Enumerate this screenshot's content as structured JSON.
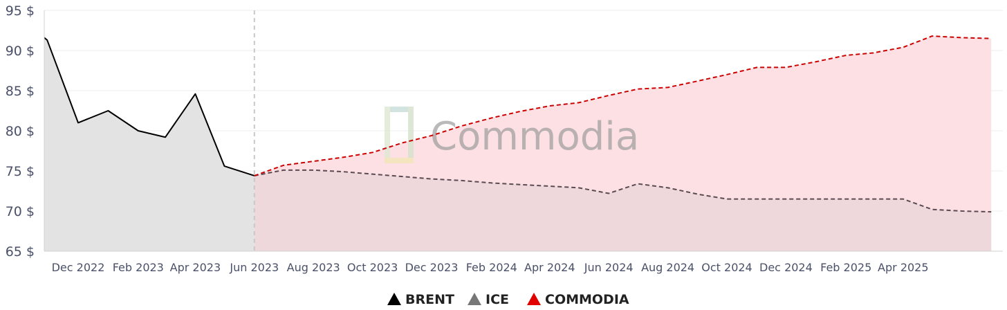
{
  "watermark": {
    "text": "Commodia"
  },
  "legend": [
    {
      "name": "BRENT",
      "color": "#000000"
    },
    {
      "name": "ICE",
      "color": "#777777"
    },
    {
      "name": "COMMODIA",
      "color": "#e00000"
    }
  ],
  "chart_data": {
    "type": "line",
    "ylim": [
      65,
      95
    ],
    "yticks": [
      65,
      70,
      75,
      80,
      85,
      90,
      95
    ],
    "ytick_suffix": " $",
    "xlim": [
      "2022-10-27",
      "2025-07-13"
    ],
    "xticks": [
      {
        "date": "2022-12-01",
        "label": "Dec 2022"
      },
      {
        "date": "2023-02-01",
        "label": "Feb 2023"
      },
      {
        "date": "2023-04-01",
        "label": "Apr 2023"
      },
      {
        "date": "2023-06-01",
        "label": "Jun 2023"
      },
      {
        "date": "2023-08-01",
        "label": "Aug 2023"
      },
      {
        "date": "2023-10-01",
        "label": "Oct 2023"
      },
      {
        "date": "2023-12-01",
        "label": "Dec 2023"
      },
      {
        "date": "2024-02-01",
        "label": "Feb 2024"
      },
      {
        "date": "2024-04-01",
        "label": "Apr 2024"
      },
      {
        "date": "2024-06-01",
        "label": "Jun 2024"
      },
      {
        "date": "2024-08-01",
        "label": "Aug 2024"
      },
      {
        "date": "2024-10-01",
        "label": "Oct 2024"
      },
      {
        "date": "2024-12-01",
        "label": "Dec 2024"
      },
      {
        "date": "2025-02-01",
        "label": "Feb 2025"
      },
      {
        "date": "2025-04-01",
        "label": "Apr 2025"
      }
    ],
    "divider_date": "2023-06-01",
    "series": [
      {
        "name": "BRENT",
        "style": "solid",
        "color": "#000000",
        "fill": "#e3e3e3",
        "points": [
          [
            "2022-10-27",
            91.6
          ],
          [
            "2022-10-30",
            91.3
          ],
          [
            "2022-12-01",
            81.0
          ],
          [
            "2023-01-01",
            82.5
          ],
          [
            "2023-02-01",
            80.0
          ],
          [
            "2023-03-01",
            79.2
          ],
          [
            "2023-04-01",
            84.6
          ],
          [
            "2023-05-01",
            75.6
          ],
          [
            "2023-06-01",
            74.4
          ]
        ]
      },
      {
        "name": "ICE",
        "style": "dashed",
        "color": "#5a4a52",
        "fill": "#ead5da",
        "points": [
          [
            "2023-06-01",
            74.4
          ],
          [
            "2023-07-01",
            75.1
          ],
          [
            "2023-08-01",
            75.1
          ],
          [
            "2023-09-01",
            74.9
          ],
          [
            "2023-10-01",
            74.6
          ],
          [
            "2023-11-01",
            74.3
          ],
          [
            "2023-12-01",
            74.0
          ],
          [
            "2024-01-01",
            73.8
          ],
          [
            "2024-02-01",
            73.5
          ],
          [
            "2024-03-01",
            73.3
          ],
          [
            "2024-04-01",
            73.1
          ],
          [
            "2024-05-01",
            72.9
          ],
          [
            "2024-06-01",
            72.2
          ],
          [
            "2024-07-01",
            73.4
          ],
          [
            "2024-08-01",
            72.9
          ],
          [
            "2024-09-01",
            72.1
          ],
          [
            "2024-10-01",
            71.5
          ],
          [
            "2024-11-01",
            71.5
          ],
          [
            "2024-12-01",
            71.5
          ],
          [
            "2025-01-01",
            71.5
          ],
          [
            "2025-02-01",
            71.5
          ],
          [
            "2025-03-01",
            71.5
          ],
          [
            "2025-04-01",
            71.5
          ],
          [
            "2025-05-01",
            70.2
          ],
          [
            "2025-06-01",
            70.0
          ],
          [
            "2025-07-01",
            69.9
          ]
        ]
      },
      {
        "name": "COMMODIA",
        "style": "dashed",
        "color": "#cc0000",
        "fill": "#fde0e3",
        "points": [
          [
            "2023-06-01",
            74.4
          ],
          [
            "2023-07-01",
            75.7
          ],
          [
            "2023-08-01",
            76.2
          ],
          [
            "2023-09-01",
            76.7
          ],
          [
            "2023-10-01",
            77.3
          ],
          [
            "2023-11-01",
            78.5
          ],
          [
            "2023-12-01",
            79.4
          ],
          [
            "2024-01-01",
            80.6
          ],
          [
            "2024-02-01",
            81.6
          ],
          [
            "2024-03-01",
            82.4
          ],
          [
            "2024-04-01",
            83.1
          ],
          [
            "2024-05-01",
            83.5
          ],
          [
            "2024-06-01",
            84.4
          ],
          [
            "2024-07-01",
            85.2
          ],
          [
            "2024-08-01",
            85.4
          ],
          [
            "2024-09-01",
            86.2
          ],
          [
            "2024-10-01",
            87.0
          ],
          [
            "2024-11-01",
            87.9
          ],
          [
            "2024-12-01",
            87.9
          ],
          [
            "2025-01-01",
            88.6
          ],
          [
            "2025-02-01",
            89.4
          ],
          [
            "2025-03-01",
            89.7
          ],
          [
            "2025-04-01",
            90.4
          ],
          [
            "2025-05-01",
            91.8
          ],
          [
            "2025-06-01",
            91.6
          ],
          [
            "2025-07-01",
            91.5
          ]
        ]
      }
    ]
  }
}
